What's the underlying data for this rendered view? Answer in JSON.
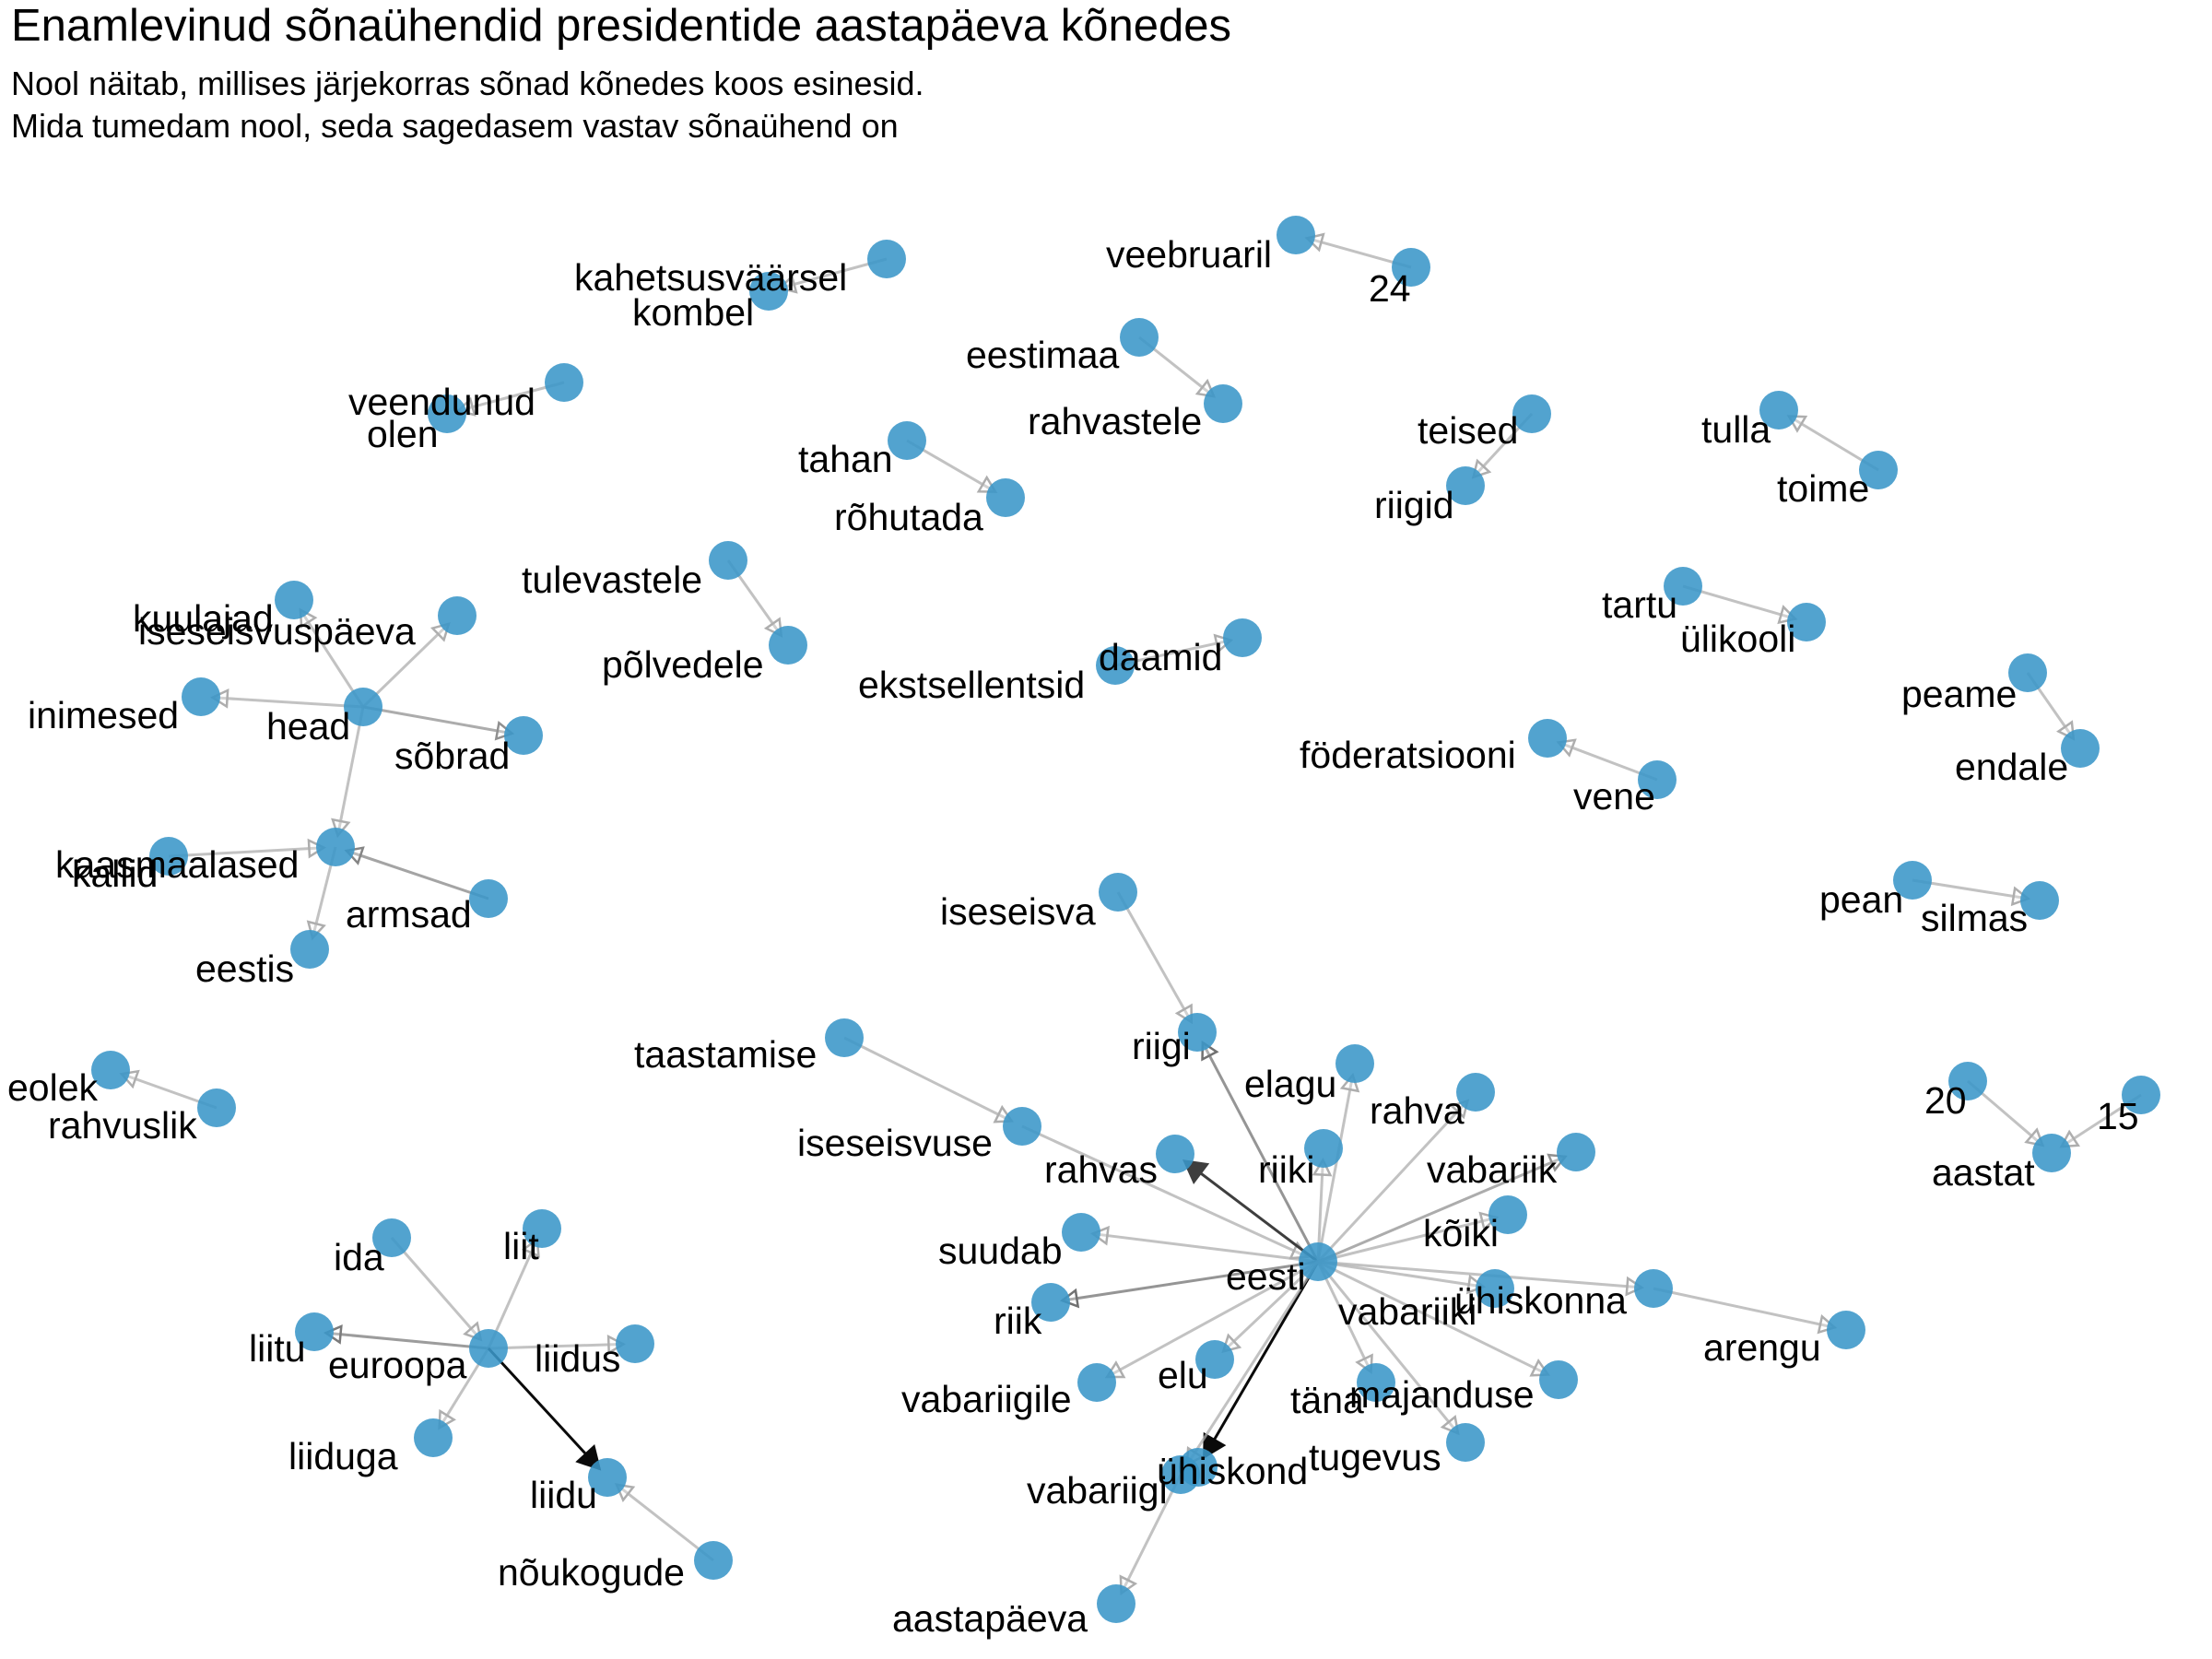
{
  "title": "Enamlevinud sõnaühendid presidentide aastapäeva kõnedes",
  "subtitle_lines": [
    "Nool näitab, millises järjekorras sõnad kõnedes koos esinesid.",
    "Mida tumedam nool, seda sagedasem vastav sõnaühend on"
  ],
  "colors": {
    "node": "#3a96c8",
    "edge_dark": "#000000",
    "edge_light": "#c8c8c8"
  },
  "graph": {
    "nodes": [
      {
        "id": "kahetsusvaarsel",
        "label": "kahetsusväärsel"
      },
      {
        "id": "kombel",
        "label": "kombel"
      },
      {
        "id": "veebruaril",
        "label": "veebruaril"
      },
      {
        "id": "24",
        "label": "24"
      },
      {
        "id": "eestimaa",
        "label": "eestimaa"
      },
      {
        "id": "rahvastele",
        "label": "rahvastele"
      },
      {
        "id": "veendunud",
        "label": "veendunud"
      },
      {
        "id": "olen",
        "label": "olen"
      },
      {
        "id": "tahan",
        "label": "tahan"
      },
      {
        "id": "rohutada",
        "label": "rõhutada"
      },
      {
        "id": "teised",
        "label": "teised"
      },
      {
        "id": "riigid",
        "label": "riigid"
      },
      {
        "id": "tulla",
        "label": "tulla"
      },
      {
        "id": "toime",
        "label": "toime"
      },
      {
        "id": "tulevastele",
        "label": "tulevastele"
      },
      {
        "id": "polvedele",
        "label": "põlvedele"
      },
      {
        "id": "kuulajad",
        "label": "kuulajad"
      },
      {
        "id": "iseseisvuspaeva",
        "label": "iseseisvuspäeva"
      },
      {
        "id": "inimesed",
        "label": "inimesed"
      },
      {
        "id": "head",
        "label": "head"
      },
      {
        "id": "sobrad",
        "label": "sõbrad"
      },
      {
        "id": "ekstsellentsid",
        "label": "ekstsellentsid"
      },
      {
        "id": "daamid",
        "label": "daamid"
      },
      {
        "id": "tartu",
        "label": "tartu"
      },
      {
        "id": "ulikooli",
        "label": "ülikooli"
      },
      {
        "id": "peame",
        "label": "peame"
      },
      {
        "id": "endale",
        "label": "endale"
      },
      {
        "id": "foderatsiooni",
        "label": "föderatsiooni"
      },
      {
        "id": "vene",
        "label": "vene"
      },
      {
        "id": "kallid",
        "label": "kallid"
      },
      {
        "id": "kaasmaalased",
        "label": "kaasmaalased"
      },
      {
        "id": "armsad",
        "label": "armsad"
      },
      {
        "id": "eestis",
        "label": "eestis"
      },
      {
        "id": "iseseisva",
        "label": "iseseisva"
      },
      {
        "id": "pean",
        "label": "pean"
      },
      {
        "id": "silmas",
        "label": "silmas"
      },
      {
        "id": "riigi",
        "label": "riigi"
      },
      {
        "id": "taastamise",
        "label": "taastamise"
      },
      {
        "id": "elagu",
        "label": "elagu"
      },
      {
        "id": "rahva",
        "label": "rahva"
      },
      {
        "id": "eolek",
        "label": "eolek"
      },
      {
        "id": "rahvuslik",
        "label": "rahvuslik"
      },
      {
        "id": "20",
        "label": "20"
      },
      {
        "id": "15",
        "label": "15"
      },
      {
        "id": "aastat",
        "label": "aastat"
      },
      {
        "id": "iseseisvuse",
        "label": "iseseisvuse"
      },
      {
        "id": "rahvas",
        "label": "rahvas"
      },
      {
        "id": "riiki",
        "label": "riiki"
      },
      {
        "id": "vabariik",
        "label": "vabariik"
      },
      {
        "id": "koiki",
        "label": "kõiki"
      },
      {
        "id": "ida",
        "label": "ida"
      },
      {
        "id": "liit",
        "label": "liit"
      },
      {
        "id": "suudab",
        "label": "suudab"
      },
      {
        "id": "eesti",
        "label": "eesti"
      },
      {
        "id": "liitu",
        "label": "liitu"
      },
      {
        "id": "euroopa",
        "label": "euroopa"
      },
      {
        "id": "liidus",
        "label": "liidus"
      },
      {
        "id": "riik",
        "label": "riik"
      },
      {
        "id": "vabariiki",
        "label": "vabariiki"
      },
      {
        "id": "uhiskonna",
        "label": "ühiskonna"
      },
      {
        "id": "arengu",
        "label": "arengu"
      },
      {
        "id": "elu",
        "label": "elu"
      },
      {
        "id": "vabariigile",
        "label": "vabariigile"
      },
      {
        "id": "tana",
        "label": "täna"
      },
      {
        "id": "majanduse",
        "label": "majanduse"
      },
      {
        "id": "liiduga",
        "label": "liiduga"
      },
      {
        "id": "tugevus",
        "label": "tugevus"
      },
      {
        "id": "liidu",
        "label": "liidu"
      },
      {
        "id": "uhiskond",
        "label": "ühiskond"
      },
      {
        "id": "vabariigi",
        "label": "vabariigi"
      },
      {
        "id": "noukogude",
        "label": "nõukogude"
      },
      {
        "id": "aastapaeva",
        "label": "aastapäeva"
      }
    ],
    "edges": [
      {
        "from": "kahetsusvaarsel",
        "to": "kombel",
        "strength": 0.15
      },
      {
        "from": "24",
        "to": "veebruaril",
        "strength": 0.15
      },
      {
        "from": "eestimaa",
        "to": "rahvastele",
        "strength": 0.15
      },
      {
        "from": "veendunud",
        "to": "olen",
        "strength": 0.15
      },
      {
        "from": "tahan",
        "to": "rohutada",
        "strength": 0.15
      },
      {
        "from": "teised",
        "to": "riigid",
        "strength": 0.15
      },
      {
        "from": "toime",
        "to": "tulla",
        "strength": 0.15
      },
      {
        "from": "tulevastele",
        "to": "polvedele",
        "strength": 0.15
      },
      {
        "from": "head",
        "to": "inimesed",
        "strength": 0.15
      },
      {
        "from": "head",
        "to": "sobrad",
        "strength": 0.3
      },
      {
        "from": "head",
        "to": "kuulajad",
        "strength": 0.15
      },
      {
        "from": "head",
        "to": "iseseisvuspaeva",
        "strength": 0.15
      },
      {
        "from": "head",
        "to": "kaasmaalased",
        "strength": 0.15
      },
      {
        "from": "ekstsellentsid",
        "to": "daamid",
        "strength": 0.15
      },
      {
        "from": "tartu",
        "to": "ulikooli",
        "strength": 0.15
      },
      {
        "from": "peame",
        "to": "endale",
        "strength": 0.15
      },
      {
        "from": "vene",
        "to": "foderatsiooni",
        "strength": 0.15
      },
      {
        "from": "kallid",
        "to": "kaasmaalased",
        "strength": 0.15
      },
      {
        "from": "armsad",
        "to": "kaasmaalased",
        "strength": 0.35
      },
      {
        "from": "kaasmaalased",
        "to": "eestis",
        "strength": 0.15
      },
      {
        "from": "pean",
        "to": "silmas",
        "strength": 0.15
      },
      {
        "from": "iseseisva",
        "to": "riigi",
        "strength": 0.15
      },
      {
        "from": "rahvuslik",
        "to": "eolek",
        "strength": 0.15
      },
      {
        "from": "20",
        "to": "aastat",
        "strength": 0.15
      },
      {
        "from": "15",
        "to": "aastat",
        "strength": 0.15
      },
      {
        "from": "taastamise",
        "to": "iseseisvuse",
        "strength": 0.15
      },
      {
        "from": "iseseisvuse",
        "to": "eesti",
        "strength": 0.15
      },
      {
        "from": "eesti",
        "to": "riigi",
        "strength": 0.45
      },
      {
        "from": "eesti",
        "to": "rahvas",
        "strength": 0.7
      },
      {
        "from": "eesti",
        "to": "riiki",
        "strength": 0.15
      },
      {
        "from": "eesti",
        "to": "elagu",
        "strength": 0.15
      },
      {
        "from": "eesti",
        "to": "rahva",
        "strength": 0.15
      },
      {
        "from": "eesti",
        "to": "vabariik",
        "strength": 0.3
      },
      {
        "from": "eesti",
        "to": "koiki",
        "strength": 0.15
      },
      {
        "from": "eesti",
        "to": "suudab",
        "strength": 0.15
      },
      {
        "from": "eesti",
        "to": "riik",
        "strength": 0.45
      },
      {
        "from": "eesti",
        "to": "vabariiki",
        "strength": 0.15
      },
      {
        "from": "eesti",
        "to": "uhiskonna",
        "strength": 0.15
      },
      {
        "from": "eesti",
        "to": "majanduse",
        "strength": 0.15
      },
      {
        "from": "eesti",
        "to": "tugevus",
        "strength": 0.15
      },
      {
        "from": "eesti",
        "to": "uhiskond",
        "strength": 0.95
      },
      {
        "from": "eesti",
        "to": "vabariigi",
        "strength": 0.15
      },
      {
        "from": "eesti",
        "to": "elu",
        "strength": 0.15
      },
      {
        "from": "eesti",
        "to": "vabariigile",
        "strength": 0.15
      },
      {
        "from": "eesti",
        "to": "tana",
        "strength": 0.15
      },
      {
        "from": "uhiskonna",
        "to": "arengu",
        "strength": 0.15
      },
      {
        "from": "vabariigi",
        "to": "aastapaeva",
        "strength": 0.15
      },
      {
        "from": "ida",
        "to": "euroopa",
        "strength": 0.15
      },
      {
        "from": "euroopa",
        "to": "liit",
        "strength": 0.15
      },
      {
        "from": "euroopa",
        "to": "liitu",
        "strength": 0.4
      },
      {
        "from": "euroopa",
        "to": "liidus",
        "strength": 0.15
      },
      {
        "from": "euroopa",
        "to": "liiduga",
        "strength": 0.15
      },
      {
        "from": "euroopa",
        "to": "liidu",
        "strength": 0.95
      },
      {
        "from": "noukogude",
        "to": "liidu",
        "strength": 0.15
      }
    ]
  }
}
